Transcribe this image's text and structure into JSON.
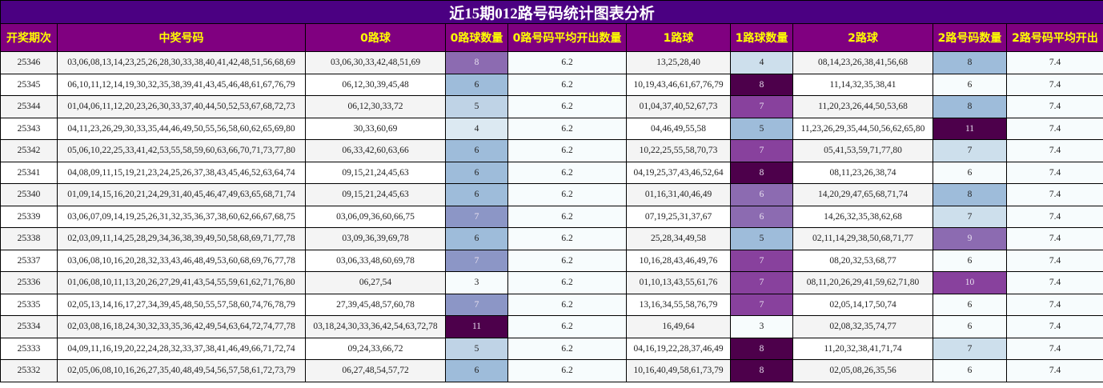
{
  "title": "近15期012路号码统计图表分析",
  "columns": [
    "开奖期次",
    "中奖号码",
    "0路球",
    "0路球数量",
    "0路号码平均开出数量",
    "1路球",
    "1路球数量",
    "2路球",
    "2路号码数量",
    "2路号码平均开出"
  ],
  "colors": {
    "title_bg": "#4b0082",
    "header_bg": "#800080",
    "header_text": "#ffff00",
    "avg_bg": "#f7fcfd",
    "odd_row_bg": "#f4f4f4"
  },
  "rows": [
    {
      "period": "25346",
      "numbers": "03,06,08,13,14,23,25,26,28,30,33,38,40,41,42,48,51,56,68,69",
      "road0": "03,06,30,33,42,48,51,69",
      "road0_count": "8",
      "road0_count_color": "#8c6bb1",
      "road0_avg": "6.2",
      "road1": "13,25,28,40",
      "road1_count": "4",
      "road1_count_color": "#cddfec",
      "road2": "08,14,23,26,38,41,56,68",
      "road2_count": "8",
      "road2_count_color": "#9ebcda",
      "road2_avg": "7.4"
    },
    {
      "period": "25345",
      "numbers": "06,10,11,12,14,19,30,32,35,38,39,41,43,45,46,48,61,67,76,79",
      "road0": "06,12,30,39,45,48",
      "road0_count": "6",
      "road0_count_color": "#9ebcda",
      "road0_avg": "6.2",
      "road1": "10,19,43,46,61,67,76,79",
      "road1_count": "8",
      "road1_count_color": "#4d004b",
      "road2": "11,14,32,35,38,41",
      "road2_count": "6",
      "road2_count_color": "#f7fcfd",
      "road2_avg": "7.4"
    },
    {
      "period": "25344",
      "numbers": "01,04,06,11,12,20,23,26,30,33,37,40,44,50,52,53,67,68,72,73",
      "road0": "06,12,30,33,72",
      "road0_count": "5",
      "road0_count_color": "#bfd3e6",
      "road0_avg": "6.2",
      "road1": "01,04,37,40,52,67,73",
      "road1_count": "7",
      "road1_count_color": "#88419d",
      "road2": "11,20,23,26,44,50,53,68",
      "road2_count": "8",
      "road2_count_color": "#9ebcda",
      "road2_avg": "7.4"
    },
    {
      "period": "25343",
      "numbers": "04,11,23,26,29,30,33,35,44,46,49,50,55,56,58,60,62,65,69,80",
      "road0": "30,33,60,69",
      "road0_count": "4",
      "road0_count_color": "#dce9f2",
      "road0_avg": "6.2",
      "road1": "04,46,49,55,58",
      "road1_count": "5",
      "road1_count_color": "#9ebcda",
      "road2": "11,23,26,29,35,44,50,56,62,65,80",
      "road2_count": "11",
      "road2_count_color": "#4d004b",
      "road2_avg": "7.4"
    },
    {
      "period": "25342",
      "numbers": "05,06,10,22,25,33,41,42,53,55,58,59,60,63,66,70,71,73,77,80",
      "road0": "06,33,42,60,63,66",
      "road0_count": "6",
      "road0_count_color": "#9ebcda",
      "road0_avg": "6.2",
      "road1": "10,22,25,55,58,70,73",
      "road1_count": "7",
      "road1_count_color": "#88419d",
      "road2": "05,41,53,59,71,77,80",
      "road2_count": "7",
      "road2_count_color": "#cddfec",
      "road2_avg": "7.4"
    },
    {
      "period": "25341",
      "numbers": "04,08,09,11,15,19,21,23,24,25,26,37,38,43,45,46,52,63,64,74",
      "road0": "09,15,21,24,45,63",
      "road0_count": "6",
      "road0_count_color": "#9ebcda",
      "road0_avg": "6.2",
      "road1": "04,19,25,37,43,46,52,64",
      "road1_count": "8",
      "road1_count_color": "#4d004b",
      "road2": "08,11,23,26,38,74",
      "road2_count": "6",
      "road2_count_color": "#f7fcfd",
      "road2_avg": "7.4"
    },
    {
      "period": "25340",
      "numbers": "01,09,14,15,16,20,21,24,29,31,40,45,46,47,49,63,65,68,71,74",
      "road0": "09,15,21,24,45,63",
      "road0_count": "6",
      "road0_count_color": "#9ebcda",
      "road0_avg": "6.2",
      "road1": "01,16,31,40,46,49",
      "road1_count": "6",
      "road1_count_color": "#8c6bb1",
      "road2": "14,20,29,47,65,68,71,74",
      "road2_count": "8",
      "road2_count_color": "#9ebcda",
      "road2_avg": "7.4"
    },
    {
      "period": "25339",
      "numbers": "03,06,07,09,14,19,25,26,31,32,35,36,37,38,60,62,66,67,68,75",
      "road0": "03,06,09,36,60,66,75",
      "road0_count": "7",
      "road0_count_color": "#8c96c6",
      "road0_avg": "6.2",
      "road1": "07,19,25,31,37,67",
      "road1_count": "6",
      "road1_count_color": "#8c6bb1",
      "road2": "14,26,32,35,38,62,68",
      "road2_count": "7",
      "road2_count_color": "#cddfec",
      "road2_avg": "7.4"
    },
    {
      "period": "25338",
      "numbers": "02,03,09,11,14,25,28,29,34,36,38,39,49,50,58,68,69,71,77,78",
      "road0": "03,09,36,39,69,78",
      "road0_count": "6",
      "road0_count_color": "#9ebcda",
      "road0_avg": "6.2",
      "road1": "25,28,34,49,58",
      "road1_count": "5",
      "road1_count_color": "#9ebcda",
      "road2": "02,11,14,29,38,50,68,71,77",
      "road2_count": "9",
      "road2_count_color": "#8c6bb1",
      "road2_avg": "7.4"
    },
    {
      "period": "25337",
      "numbers": "03,06,08,10,16,20,28,32,33,43,46,48,49,53,60,68,69,76,77,78",
      "road0": "03,06,33,48,60,69,78",
      "road0_count": "7",
      "road0_count_color": "#8c96c6",
      "road0_avg": "6.2",
      "road1": "10,16,28,43,46,49,76",
      "road1_count": "7",
      "road1_count_color": "#88419d",
      "road2": "08,20,32,53,68,77",
      "road2_count": "6",
      "road2_count_color": "#f7fcfd",
      "road2_avg": "7.4"
    },
    {
      "period": "25336",
      "numbers": "01,06,08,10,11,13,20,26,27,29,41,43,54,55,59,61,62,71,76,80",
      "road0": "06,27,54",
      "road0_count": "3",
      "road0_count_color": "#f7fcfd",
      "road0_avg": "6.2",
      "road1": "01,10,13,43,55,61,76",
      "road1_count": "7",
      "road1_count_color": "#88419d",
      "road2": "08,11,20,26,29,41,59,62,71,80",
      "road2_count": "10",
      "road2_count_color": "#88419d",
      "road2_avg": "7.4"
    },
    {
      "period": "25335",
      "numbers": "02,05,13,14,16,17,27,34,39,45,48,50,55,57,58,60,74,76,78,79",
      "road0": "27,39,45,48,57,60,78",
      "road0_count": "7",
      "road0_count_color": "#8c96c6",
      "road0_avg": "6.2",
      "road1": "13,16,34,55,58,76,79",
      "road1_count": "7",
      "road1_count_color": "#88419d",
      "road2": "02,05,14,17,50,74",
      "road2_count": "6",
      "road2_count_color": "#f7fcfd",
      "road2_avg": "7.4"
    },
    {
      "period": "25334",
      "numbers": "02,03,08,16,18,24,30,32,33,35,36,42,49,54,63,64,72,74,77,78",
      "road0": "03,18,24,30,33,36,42,54,63,72,78",
      "road0_count": "11",
      "road0_count_color": "#4d004b",
      "road0_avg": "6.2",
      "road1": "16,49,64",
      "road1_count": "3",
      "road1_count_color": "#f7fcfd",
      "road2": "02,08,32,35,74,77",
      "road2_count": "6",
      "road2_count_color": "#f7fcfd",
      "road2_avg": "7.4"
    },
    {
      "period": "25333",
      "numbers": "04,09,11,16,19,20,22,24,28,32,33,37,38,41,46,49,66,71,72,74",
      "road0": "09,24,33,66,72",
      "road0_count": "5",
      "road0_count_color": "#bfd3e6",
      "road0_avg": "6.2",
      "road1": "04,16,19,22,28,37,46,49",
      "road1_count": "8",
      "road1_count_color": "#4d004b",
      "road2": "11,20,32,38,41,71,74",
      "road2_count": "7",
      "road2_count_color": "#cddfec",
      "road2_avg": "7.4"
    },
    {
      "period": "25332",
      "numbers": "02,05,06,08,10,16,26,27,35,40,48,49,54,56,57,58,61,72,73,79",
      "road0": "06,27,48,54,57,72",
      "road0_count": "6",
      "road0_count_color": "#9ebcda",
      "road0_avg": "6.2",
      "road1": "10,16,40,49,58,61,73,79",
      "road1_count": "8",
      "road1_count_color": "#4d004b",
      "road2": "02,05,08,26,35,56",
      "road2_count": "6",
      "road2_count_color": "#f7fcfd",
      "road2_avg": "7.4"
    }
  ]
}
